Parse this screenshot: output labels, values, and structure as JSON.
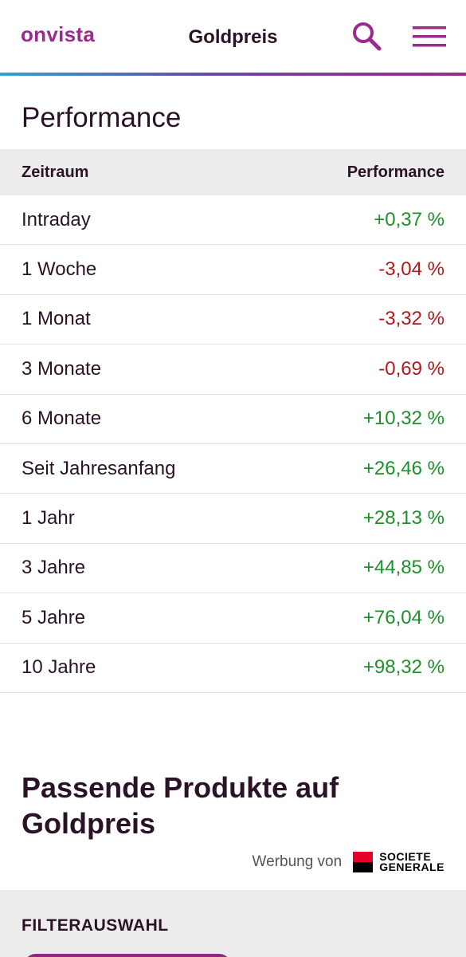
{
  "header": {
    "logo": "onvista",
    "title": "Goldpreis",
    "accent_color": "#9b2a8f",
    "search_icon": "search-icon",
    "menu_icon": "hamburger-menu-icon"
  },
  "performance": {
    "title": "Performance",
    "columns": [
      "Zeitraum",
      "Performance"
    ],
    "rows": [
      {
        "label": "Intraday",
        "value": "+0,37 %",
        "trend": "pos"
      },
      {
        "label": "1 Woche",
        "value": "-3,04 %",
        "trend": "neg"
      },
      {
        "label": "1 Monat",
        "value": "-3,32 %",
        "trend": "neg"
      },
      {
        "label": "3 Monate",
        "value": "-0,69 %",
        "trend": "neg"
      },
      {
        "label": "6 Monate",
        "value": "+10,32 %",
        "trend": "pos"
      },
      {
        "label": "Seit Jahresanfang",
        "value": "+26,46 %",
        "trend": "pos"
      },
      {
        "label": "1 Jahr",
        "value": "+28,13 %",
        "trend": "pos"
      },
      {
        "label": "3 Jahre",
        "value": "+44,85 %",
        "trend": "pos"
      },
      {
        "label": "5 Jahre",
        "value": "+76,04 %",
        "trend": "pos"
      },
      {
        "label": "10 Jahre",
        "value": "+98,32 %",
        "trend": "pos"
      }
    ],
    "positive_color": "#1e8f2a",
    "negative_color": "#b01a1a"
  },
  "products": {
    "title": "Passende Produkte auf Goldpreis",
    "ad_text": "Werbung von",
    "sponsor_line1": "SOCIETE",
    "sponsor_line2": "GENERALE"
  },
  "filter": {
    "title": "FILTERAUSWAHL"
  }
}
